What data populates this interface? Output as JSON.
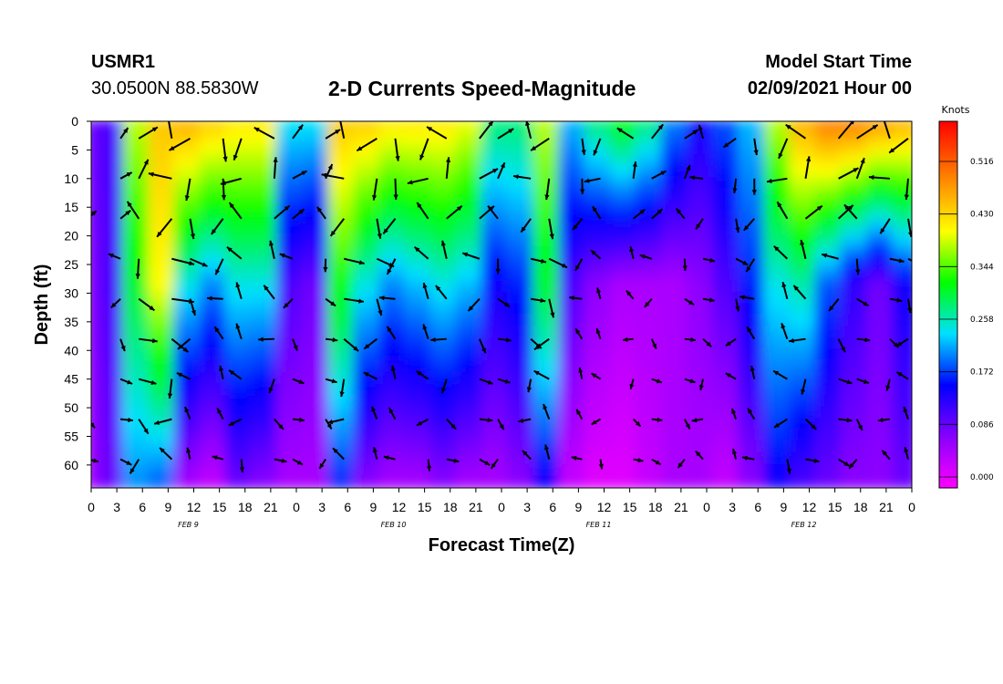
{
  "header": {
    "station": "USMR1",
    "coords": "30.0500N 88.5830W",
    "title": "2-D Currents Speed-Magnitude",
    "model_start_label": "Model Start Time",
    "model_start_value": "02/09/2021 Hour 00"
  },
  "chart_data": {
    "type": "heatmap",
    "title": "2-D Currents Speed-Magnitude",
    "xlabel": "Forecast Time(Z)",
    "ylabel": "Depth (ft)",
    "x_ticks": [
      "0",
      "3",
      "6",
      "9",
      "12",
      "15",
      "18",
      "21",
      "0",
      "3",
      "6",
      "9",
      "12",
      "15",
      "18",
      "21",
      "0",
      "3",
      "6",
      "9",
      "12",
      "15",
      "18",
      "21",
      "0",
      "3",
      "6",
      "9",
      "12",
      "15",
      "18",
      "21",
      "0"
    ],
    "day_labels": [
      "FEB 9",
      "FEB 10",
      "FEB 11",
      "FEB 12"
    ],
    "y_ticks": [
      0,
      5,
      10,
      15,
      20,
      25,
      30,
      35,
      40,
      45,
      50,
      55,
      60
    ],
    "xlim_hours": [
      0,
      96
    ],
    "ylim_ft": [
      0,
      64
    ],
    "colorbar": {
      "unit": "Knots",
      "ticks": [
        "0.516",
        "0.430",
        "0.344",
        "0.258",
        "0.172",
        "0.086",
        "0.000"
      ],
      "min": 0.0,
      "max": 0.6
    },
    "speed_profiles_knots": [
      {
        "hour": 0,
        "surface": 0.1,
        "mid": 0.08,
        "bottom": 0.06
      },
      {
        "hour": 3,
        "surface": 0.12,
        "mid": 0.12,
        "bottom": 0.1
      },
      {
        "hour": 6,
        "surface": 0.4,
        "mid": 0.32,
        "bottom": 0.22
      },
      {
        "hour": 9,
        "surface": 0.46,
        "mid": 0.42,
        "bottom": 0.2
      },
      {
        "hour": 12,
        "surface": 0.48,
        "mid": 0.26,
        "bottom": 0.06
      },
      {
        "hour": 15,
        "surface": 0.46,
        "mid": 0.22,
        "bottom": 0.04
      },
      {
        "hour": 18,
        "surface": 0.44,
        "mid": 0.26,
        "bottom": 0.1
      },
      {
        "hour": 21,
        "surface": 0.44,
        "mid": 0.26,
        "bottom": 0.08
      },
      {
        "hour": 24,
        "surface": 0.26,
        "mid": 0.12,
        "bottom": 0.06
      },
      {
        "hour": 27,
        "surface": 0.26,
        "mid": 0.1,
        "bottom": 0.06
      },
      {
        "hour": 30,
        "surface": 0.46,
        "mid": 0.34,
        "bottom": 0.18
      },
      {
        "hour": 33,
        "surface": 0.46,
        "mid": 0.26,
        "bottom": 0.08
      },
      {
        "hour": 36,
        "surface": 0.44,
        "mid": 0.22,
        "bottom": 0.06
      },
      {
        "hour": 39,
        "surface": 0.44,
        "mid": 0.24,
        "bottom": 0.06
      },
      {
        "hour": 42,
        "surface": 0.44,
        "mid": 0.26,
        "bottom": 0.08
      },
      {
        "hour": 45,
        "surface": 0.42,
        "mid": 0.24,
        "bottom": 0.06
      },
      {
        "hour": 48,
        "surface": 0.3,
        "mid": 0.16,
        "bottom": 0.06
      },
      {
        "hour": 51,
        "surface": 0.3,
        "mid": 0.18,
        "bottom": 0.08
      },
      {
        "hour": 54,
        "surface": 0.4,
        "mid": 0.32,
        "bottom": 0.16
      },
      {
        "hour": 57,
        "surface": 0.24,
        "mid": 0.12,
        "bottom": 0.04
      },
      {
        "hour": 60,
        "surface": 0.3,
        "mid": 0.08,
        "bottom": 0.02
      },
      {
        "hour": 63,
        "surface": 0.34,
        "mid": 0.06,
        "bottom": 0.02
      },
      {
        "hour": 66,
        "surface": 0.3,
        "mid": 0.06,
        "bottom": 0.04
      },
      {
        "hour": 69,
        "surface": 0.22,
        "mid": 0.06,
        "bottom": 0.06
      },
      {
        "hour": 72,
        "surface": 0.16,
        "mid": 0.08,
        "bottom": 0.06
      },
      {
        "hour": 75,
        "surface": 0.2,
        "mid": 0.12,
        "bottom": 0.04
      },
      {
        "hour": 78,
        "surface": 0.24,
        "mid": 0.18,
        "bottom": 0.08
      },
      {
        "hour": 81,
        "surface": 0.4,
        "mid": 0.26,
        "bottom": 0.16
      },
      {
        "hour": 84,
        "surface": 0.48,
        "mid": 0.28,
        "bottom": 0.12
      },
      {
        "hour": 87,
        "surface": 0.52,
        "mid": 0.2,
        "bottom": 0.1
      },
      {
        "hour": 90,
        "surface": 0.52,
        "mid": 0.14,
        "bottom": 0.08
      },
      {
        "hour": 93,
        "surface": 0.5,
        "mid": 0.1,
        "bottom": 0.08
      },
      {
        "hour": 96,
        "surface": 0.48,
        "mid": 0.16,
        "bottom": 0.1
      }
    ]
  }
}
